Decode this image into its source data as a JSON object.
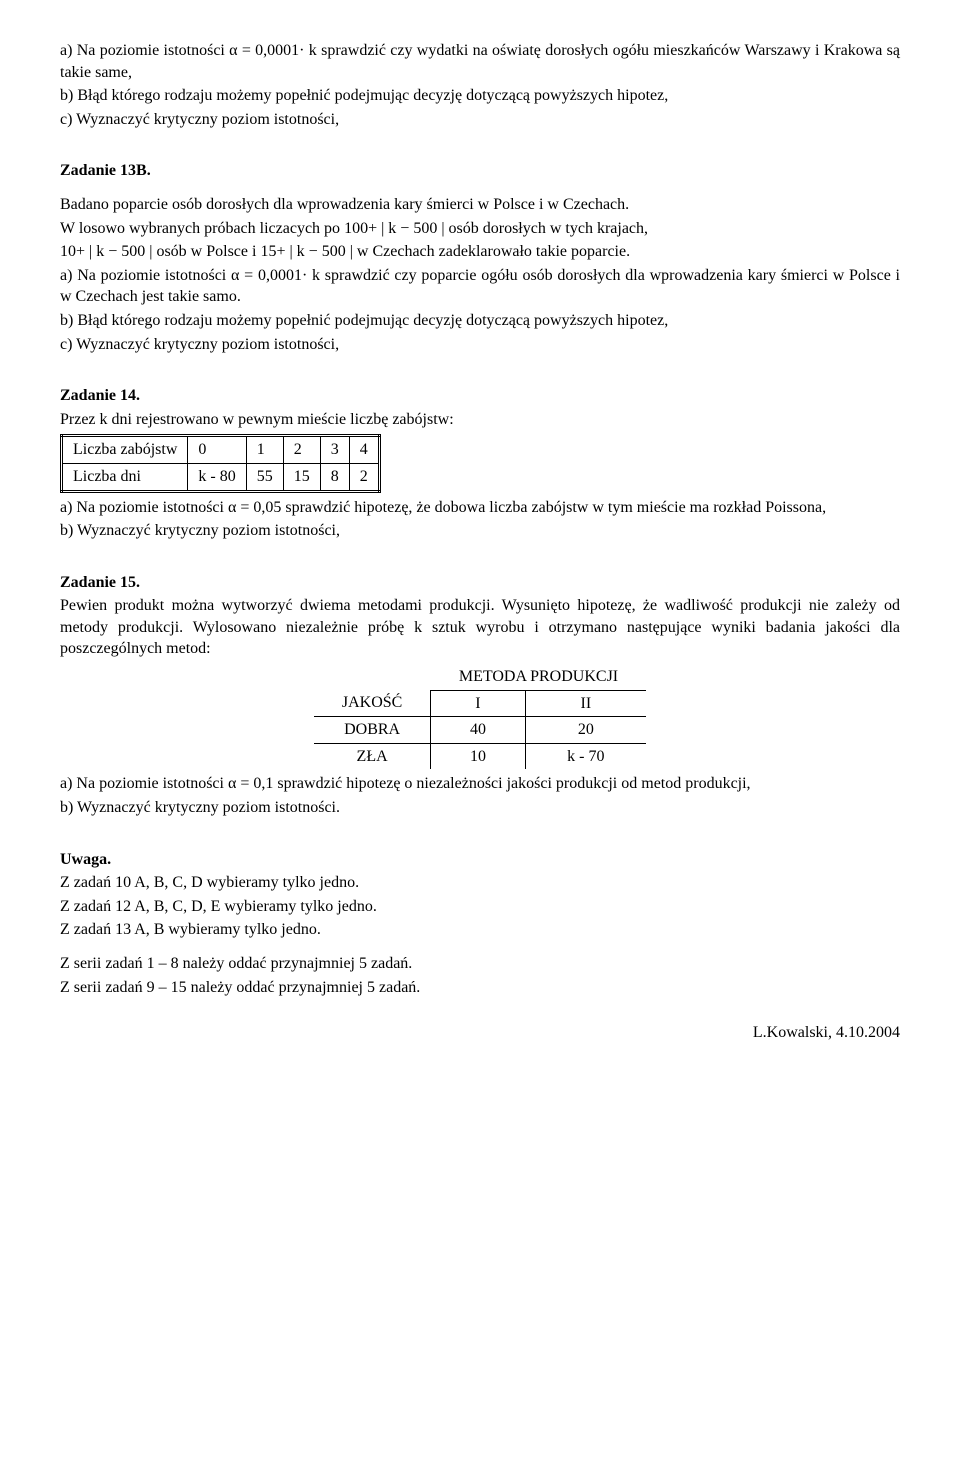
{
  "z_top": {
    "a1": "a) Na  poziomie istotności ",
    "a_formula": "α = 0,0001· k",
    "a2": "  sprawdzić czy wydatki na oświatę dorosłych ogółu mieszkańców Warszawy i Krakowa są takie same,",
    "b": "b) Błąd którego rodzaju możemy popełnić podejmując decyzję dotyczącą powyższych hipotez,",
    "c": "c) Wyznaczyć krytyczny poziom istotności,"
  },
  "z13b": {
    "title": "Zadanie 13B.",
    "p1": "Badano poparcie osób dorosłych dla wprowadzenia kary śmierci w Polsce i w Czechach.",
    "p2a": "W losowo wybranych próbach liczacych po  ",
    "p2f1": "100+ | k − 500 |",
    "p2b": " osób dorosłych w tych krajach,",
    "p3a": "",
    "p3f1": "10+ | k − 500 |",
    "p3b": " osób w Polsce i ",
    "p3f2": "15+ | k − 500 |",
    "p3c": " w Czechach zadeklarowało takie poparcie.",
    "a1": "a) Na  poziomie istotności ",
    "a_formula": "α = 0,0001· k",
    "a2": "  sprawdzić czy poparcie ogółu osób dorosłych dla wprowadzenia kary śmierci w Polsce i w Czechach jest takie samo.",
    "b": "b) Błąd którego rodzaju możemy popełnić podejmując decyzję dotyczącą powyższych hipotez,",
    "c": "c) Wyznaczyć krytyczny poziom istotności,"
  },
  "z14": {
    "title": "Zadanie 14.",
    "intro": "Przez k dni rejestrowano w pewnym mieście liczbę zabójstw:",
    "row1": [
      "Liczba zabójstw",
      "0",
      "1",
      "2",
      "3",
      "4"
    ],
    "row2": [
      "Liczba dni",
      "k - 80",
      "55",
      "15",
      "8",
      "2"
    ],
    "a1": "a) Na poziomie istotności ",
    "a_formula": "α = 0,05",
    "a2": " sprawdzić hipotezę, że dobowa liczba zabójstw w tym mieście ma rozkład Poissona,",
    "b": "b) Wyznaczyć krytyczny poziom istotności,"
  },
  "z15": {
    "title": "Zadanie 15.",
    "p1": "Pewien produkt można wytworzyć dwiema metodami produkcji. Wysunięto hipotezę, że wadliwość produkcji nie zależy od metody produkcji. Wylosowano niezależnie próbę k sztuk wyrobu i otrzymano następujące wyniki badania jakości dla poszczególnych metod:",
    "th_metoda": "METODA PRODUKCJI",
    "th_jakosc": "JAKOŚĆ",
    "th_I": "I",
    "th_II": "II",
    "r1": [
      "DOBRA",
      "40",
      "20"
    ],
    "r2": [
      "ZŁA",
      "10",
      "k - 70"
    ],
    "a1": "a) Na poziomie istotności ",
    "a_formula": "α = 0,1",
    "a2": " sprawdzić hipotezę o niezależności jakości produkcji od metod produkcji,",
    "b": "b) Wyznaczyć krytyczny poziom istotności."
  },
  "uwaga": {
    "title": "Uwaga.",
    "l1": "Z zadań  10 A, B, C, D wybieramy tylko jedno.",
    "l2": "Z zadań  12 A, B, C, D, E wybieramy tylko jedno.",
    "l3": "Z zadań  13 A, B  wybieramy tylko jedno.",
    "s1": "Z  serii zadań 1 – 8 należy oddać przynajmniej 5 zadań.",
    "s2": "Z  serii zadań 9 – 15 należy oddać przynajmniej 5 zadań."
  },
  "footer": "L.Kowalski, 4.10.2004"
}
